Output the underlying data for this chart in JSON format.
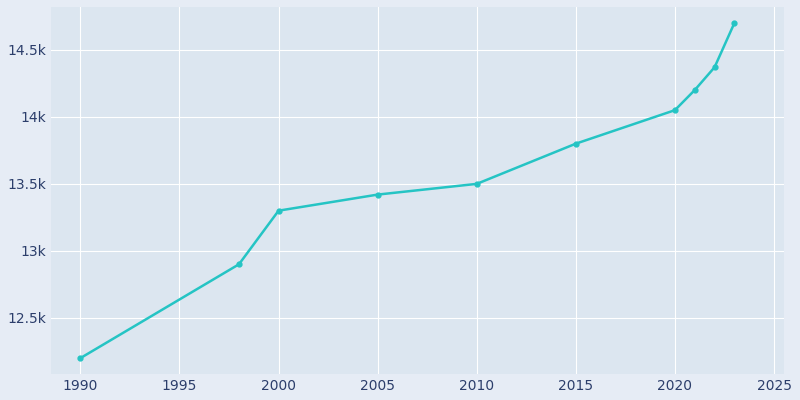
{
  "years": [
    1990,
    1998,
    2000,
    2005,
    2010,
    2015,
    2020,
    2021,
    2022,
    2023
  ],
  "population": [
    12200,
    12900,
    13300,
    13420,
    13500,
    13800,
    14050,
    14200,
    14370,
    14700
  ],
  "line_color": "#25c4c4",
  "bg_color": "#e6ecf5",
  "axes_bg_color": "#dce6f0",
  "tick_color": "#2c3e6b",
  "grid_color": "#ffffff",
  "xlim": [
    1988.5,
    2025.5
  ],
  "ylim": [
    12080,
    14820
  ],
  "xticks": [
    1990,
    1995,
    2000,
    2005,
    2010,
    2015,
    2020,
    2025
  ],
  "ytick_values": [
    12500,
    13000,
    13500,
    14000,
    14500
  ],
  "ytick_labels": [
    "12.5k",
    "13k",
    "13.5k",
    "14k",
    "14.5k"
  ],
  "line_width": 1.8,
  "marker_size": 3.5,
  "marker_color": "#25c4c4"
}
